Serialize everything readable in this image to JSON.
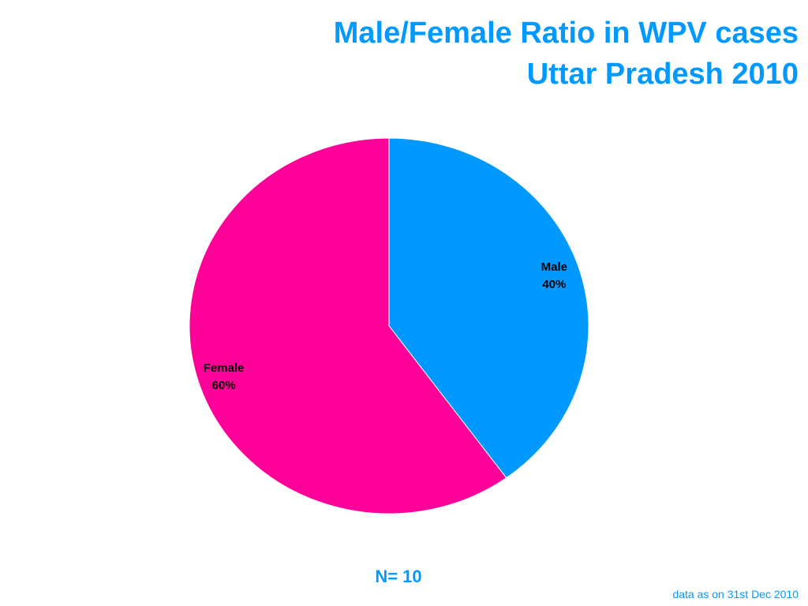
{
  "chart_data": {
    "type": "pie",
    "title": "Male/Female Ratio in WPV cases",
    "subtitle": "Uttar Pradesh 2010",
    "categories": [
      "Male",
      "Female"
    ],
    "values": [
      40,
      60
    ],
    "value_labels": [
      "40%",
      "60%"
    ],
    "colors": [
      "#0099ff",
      "#ff0099"
    ],
    "annotations": [
      "N= 10",
      "data as on 31st Dec 2010"
    ]
  }
}
